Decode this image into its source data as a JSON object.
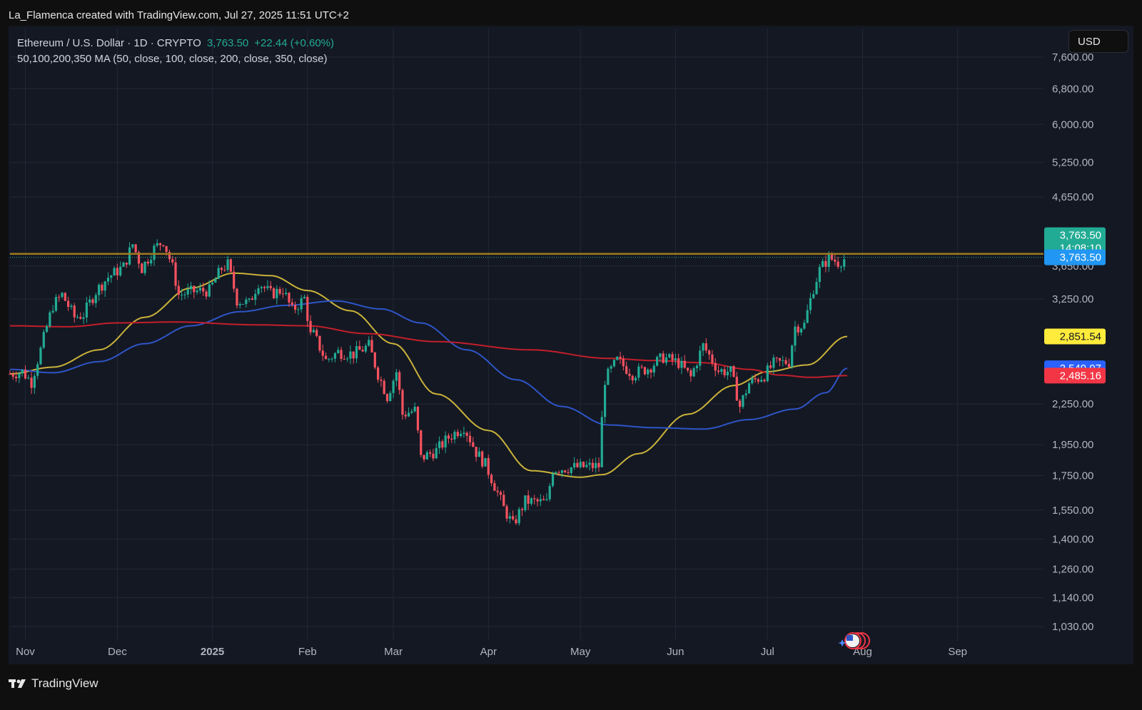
{
  "header": {
    "credit": "La_Flamenca created with TradingView.com, Jul 27, 2025 11:51 UTC+2"
  },
  "legend": {
    "symbol": "Ethereum / U.S. Dollar · 1D · CRYPTO",
    "last": "3,763.50",
    "change": "+22.44 (+0.60%)",
    "indicator": "50,100,200,350 MA (50, close, 100, close, 200, close, 350, close)"
  },
  "currency_button": "USD",
  "footer": {
    "brand": "TradingView"
  },
  "colors": {
    "background": "#141823",
    "up": "#22ab94",
    "down": "#f7525f",
    "ma_yellow": "#c9b23a",
    "ma_blue": "#2e55c7",
    "ma_red": "#c21f2a",
    "resistance": "#9c7a1f"
  },
  "chart_data": {
    "type": "candlestick",
    "symbol": "ETHUSD",
    "timeframe": "1D",
    "y_scale": "log",
    "ylim": [
      980,
      8400
    ],
    "x_range": [
      "2024-10-27",
      "2025-09-29"
    ],
    "price_ticks": [
      "7,600.00",
      "6,800.00",
      "6,000.00",
      "5,250.00",
      "4,650.00",
      "3,650.00",
      "3,250.00",
      "2,250.00",
      "1,950.00",
      "1,750.00",
      "1,550.00",
      "1,400.00",
      "1,260.00",
      "1,140.00",
      "1,030.00"
    ],
    "price_tick_values": [
      7600,
      6800,
      6000,
      5250,
      4650,
      3650,
      3250,
      2250,
      1950,
      1750,
      1550,
      1400,
      1260,
      1140,
      1030
    ],
    "time_ticks": [
      {
        "label": "Nov",
        "date": "2024-11-01"
      },
      {
        "label": "Dec",
        "date": "2024-12-01"
      },
      {
        "label": "2025",
        "date": "2025-01-01",
        "bold": true
      },
      {
        "label": "Feb",
        "date": "2025-02-01"
      },
      {
        "label": "Mar",
        "date": "2025-03-01"
      },
      {
        "label": "Apr",
        "date": "2025-04-01"
      },
      {
        "label": "May",
        "date": "2025-05-01"
      },
      {
        "label": "Jun",
        "date": "2025-06-01"
      },
      {
        "label": "Jul",
        "date": "2025-07-01"
      },
      {
        "label": "Aug",
        "date": "2025-08-01"
      },
      {
        "label": "Sep",
        "date": "2025-09-01"
      }
    ],
    "resistance_level": 3810,
    "last_price": 3763.5,
    "close_path": [
      [
        "2024-10-27",
        2500
      ],
      [
        "2024-10-31",
        2520
      ],
      [
        "2024-11-03",
        2430
      ],
      [
        "2024-11-06",
        2720
      ],
      [
        "2024-11-10",
        3180
      ],
      [
        "2024-11-13",
        3300
      ],
      [
        "2024-11-17",
        3050
      ],
      [
        "2024-11-20",
        3080
      ],
      [
        "2024-11-24",
        3340
      ],
      [
        "2024-11-28",
        3510
      ],
      [
        "2024-12-03",
        3640
      ],
      [
        "2024-12-06",
        3940
      ],
      [
        "2024-12-09",
        3620
      ],
      [
        "2024-12-13",
        3880
      ],
      [
        "2024-12-16",
        3990
      ],
      [
        "2024-12-19",
        3630
      ],
      [
        "2024-12-21",
        3300
      ],
      [
        "2024-12-26",
        3340
      ],
      [
        "2024-12-31",
        3350
      ],
      [
        "2025-01-04",
        3620
      ],
      [
        "2025-01-06",
        3670
      ],
      [
        "2025-01-09",
        3240
      ],
      [
        "2025-01-13",
        3200
      ],
      [
        "2025-01-16",
        3450
      ],
      [
        "2025-01-20",
        3310
      ],
      [
        "2025-01-24",
        3360
      ],
      [
        "2025-01-27",
        3120
      ],
      [
        "2025-01-31",
        3260
      ],
      [
        "2025-02-02",
        2860
      ],
      [
        "2025-02-03",
        2870
      ],
      [
        "2025-02-07",
        2620
      ],
      [
        "2025-02-11",
        2700
      ],
      [
        "2025-02-16",
        2680
      ],
      [
        "2025-02-21",
        2760
      ],
      [
        "2025-02-24",
        2500
      ],
      [
        "2025-02-27",
        2310
      ],
      [
        "2025-03-02",
        2520
      ],
      [
        "2025-03-04",
        2170
      ],
      [
        "2025-03-08",
        2200
      ],
      [
        "2025-03-10",
        1860
      ],
      [
        "2025-03-15",
        1910
      ],
      [
        "2025-03-19",
        2000
      ],
      [
        "2025-03-24",
        2080
      ],
      [
        "2025-03-28",
        1900
      ],
      [
        "2025-03-31",
        1820
      ],
      [
        "2025-04-06",
        1560
      ],
      [
        "2025-04-09",
        1470
      ],
      [
        "2025-04-13",
        1600
      ],
      [
        "2025-04-20",
        1590
      ],
      [
        "2025-04-22",
        1790
      ],
      [
        "2025-04-28",
        1800
      ],
      [
        "2025-05-07",
        1810
      ],
      [
        "2025-05-09",
        2450
      ],
      [
        "2025-05-13",
        2620
      ],
      [
        "2025-05-18",
        2500
      ],
      [
        "2025-05-23",
        2550
      ],
      [
        "2025-05-28",
        2650
      ],
      [
        "2025-06-02",
        2600
      ],
      [
        "2025-06-06",
        2470
      ],
      [
        "2025-06-10",
        2760
      ],
      [
        "2025-06-15",
        2530
      ],
      [
        "2025-06-19",
        2520
      ],
      [
        "2025-06-22",
        2230
      ],
      [
        "2025-06-25",
        2420
      ],
      [
        "2025-06-30",
        2490
      ],
      [
        "2025-07-03",
        2590
      ],
      [
        "2025-07-08",
        2610
      ],
      [
        "2025-07-10",
        2950
      ],
      [
        "2025-07-13",
        2970
      ],
      [
        "2025-07-16",
        3380
      ],
      [
        "2025-07-18",
        3600
      ],
      [
        "2025-07-21",
        3760
      ],
      [
        "2025-07-24",
        3700
      ],
      [
        "2025-07-27",
        3763.5
      ]
    ],
    "moving_averages": [
      {
        "name": "MA 50",
        "color": "#c9b23a",
        "last": "2,851.54",
        "points": [
          [
            "2024-10-27",
            2500
          ],
          [
            "2024-11-10",
            2560
          ],
          [
            "2024-11-25",
            2720
          ],
          [
            "2024-12-10",
            3050
          ],
          [
            "2024-12-25",
            3380
          ],
          [
            "2025-01-08",
            3560
          ],
          [
            "2025-01-20",
            3530
          ],
          [
            "2025-02-01",
            3350
          ],
          [
            "2025-02-15",
            3120
          ],
          [
            "2025-03-01",
            2780
          ],
          [
            "2025-03-15",
            2330
          ],
          [
            "2025-04-01",
            2050
          ],
          [
            "2025-04-15",
            1780
          ],
          [
            "2025-05-01",
            1740
          ],
          [
            "2025-05-08",
            1755
          ],
          [
            "2025-05-20",
            1890
          ],
          [
            "2025-06-05",
            2170
          ],
          [
            "2025-06-20",
            2400
          ],
          [
            "2025-07-01",
            2520
          ],
          [
            "2025-07-14",
            2580
          ],
          [
            "2025-07-27",
            2851.54
          ]
        ]
      },
      {
        "name": "MA 100",
        "color": "#2e55c7",
        "last": "2,549.97",
        "points": [
          [
            "2024-10-27",
            2540
          ],
          [
            "2024-11-10",
            2510
          ],
          [
            "2024-11-25",
            2610
          ],
          [
            "2024-12-10",
            2780
          ],
          [
            "2024-12-25",
            2960
          ],
          [
            "2025-01-10",
            3110
          ],
          [
            "2025-01-25",
            3180
          ],
          [
            "2025-02-10",
            3230
          ],
          [
            "2025-02-25",
            3140
          ],
          [
            "2025-03-10",
            2990
          ],
          [
            "2025-03-25",
            2720
          ],
          [
            "2025-04-10",
            2450
          ],
          [
            "2025-04-25",
            2230
          ],
          [
            "2025-05-10",
            2090
          ],
          [
            "2025-05-25",
            2070
          ],
          [
            "2025-06-10",
            2060
          ],
          [
            "2025-06-25",
            2130
          ],
          [
            "2025-07-10",
            2210
          ],
          [
            "2025-07-20",
            2340
          ],
          [
            "2025-07-27",
            2549.97
          ]
        ]
      },
      {
        "name": "MA 200",
        "color": "#c21f2a",
        "last": "2,485.16",
        "points": [
          [
            "2024-10-27",
            2960
          ],
          [
            "2024-11-15",
            2950
          ],
          [
            "2024-12-01",
            2990
          ],
          [
            "2024-12-20",
            3000
          ],
          [
            "2025-01-15",
            2970
          ],
          [
            "2025-02-01",
            2960
          ],
          [
            "2025-02-20",
            2880
          ],
          [
            "2025-03-15",
            2800
          ],
          [
            "2025-04-15",
            2720
          ],
          [
            "2025-05-10",
            2640
          ],
          [
            "2025-05-25",
            2620
          ],
          [
            "2025-06-10",
            2600
          ],
          [
            "2025-06-25",
            2540
          ],
          [
            "2025-07-05",
            2490
          ],
          [
            "2025-07-15",
            2470
          ],
          [
            "2025-07-27",
            2485.16
          ]
        ]
      }
    ],
    "price_tags": [
      {
        "label": "3,763.50",
        "sub": "14:08:10",
        "value": 3763.5,
        "color": "#22ab94",
        "kind": "last"
      },
      {
        "label": "3,763.50",
        "value": 3763.5,
        "color": "#2196f3",
        "kind": "crosshair"
      },
      {
        "label": "2,851.54",
        "value": 2851.54,
        "color": "#ffeb3b",
        "text_color": "#131722",
        "kind": "ma50"
      },
      {
        "label": "2,549.97",
        "value": 2549.97,
        "color": "#2962ff",
        "kind": "ma100"
      },
      {
        "label": "2,485.16",
        "value": 2485.16,
        "color": "#f23645",
        "kind": "ma200"
      }
    ]
  }
}
